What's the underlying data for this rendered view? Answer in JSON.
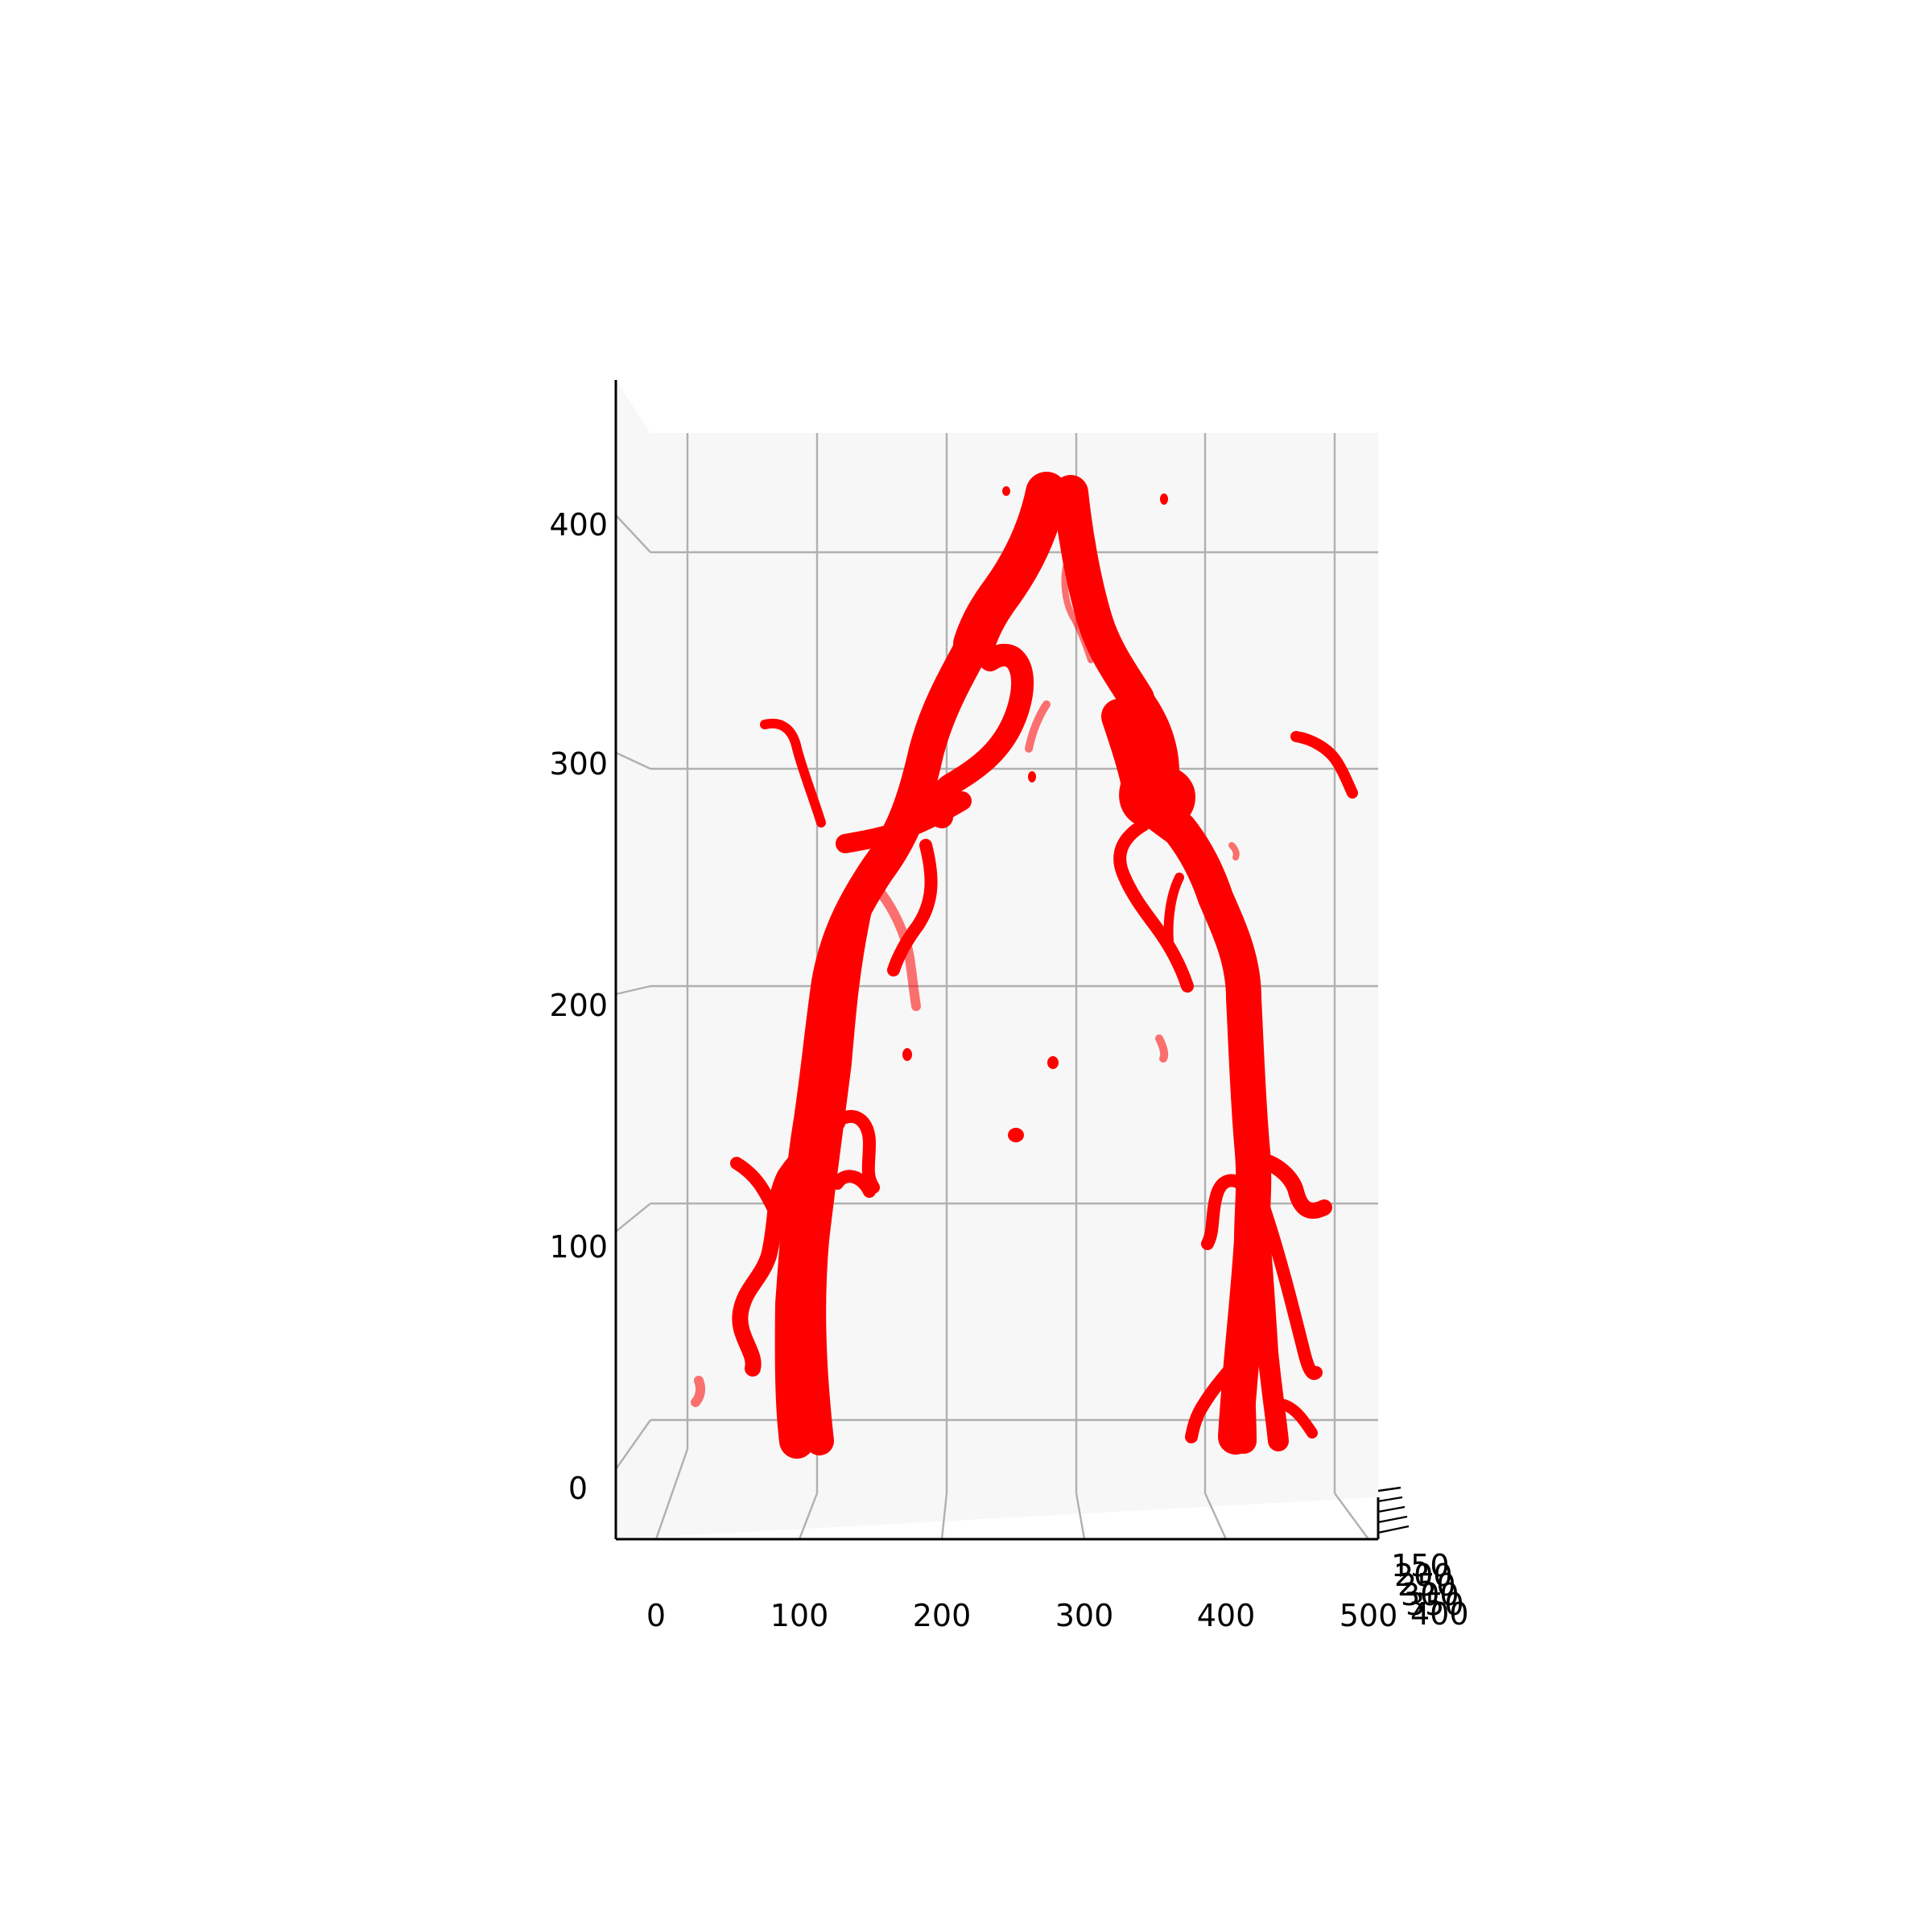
{
  "chart_data": {
    "type": "scatter",
    "projection": "3d",
    "title": "",
    "colors": {
      "points": "#ff0000",
      "pane": "#f7f7f7",
      "grid": "#b0b0b0"
    },
    "x_axis": {
      "label": "",
      "range": [
        0,
        500
      ],
      "ticks": [
        "0",
        "100",
        "200",
        "300",
        "400",
        "500"
      ]
    },
    "y_axis": {
      "label": "",
      "ticks": [
        "150",
        "200",
        "250",
        "300",
        "350",
        "400"
      ]
    },
    "z_axis": {
      "label": "",
      "range": [
        0,
        400
      ],
      "ticks": [
        "0",
        "100",
        "200",
        "300",
        "400"
      ]
    },
    "grid": true,
    "legend": "none",
    "series": [
      {
        "shape": "bifurcating vessel tree",
        "segments": [
          {
            "part": "trunk",
            "x": [
              300,
              287,
              270,
              255
            ],
            "z": [
              406,
              380,
              355,
              330
            ]
          },
          {
            "part": "left main",
            "x": [
              255,
              240,
              230,
              212,
              195,
              170,
              150,
              143,
              138,
              132,
              130
            ],
            "z": [
              330,
              295,
              265,
              240,
              225,
              200,
              175,
              130,
              80,
              40,
              0
            ]
          },
          {
            "part": "right main",
            "x": [
              303,
              312,
              322,
              336,
              345,
              362,
              378,
              394,
              406,
              410,
              408,
              404
            ],
            "z": [
              406,
              370,
              345,
              325,
              300,
              275,
              250,
              225,
              200,
              150,
              90,
              0
            ]
          }
        ]
      }
    ]
  }
}
